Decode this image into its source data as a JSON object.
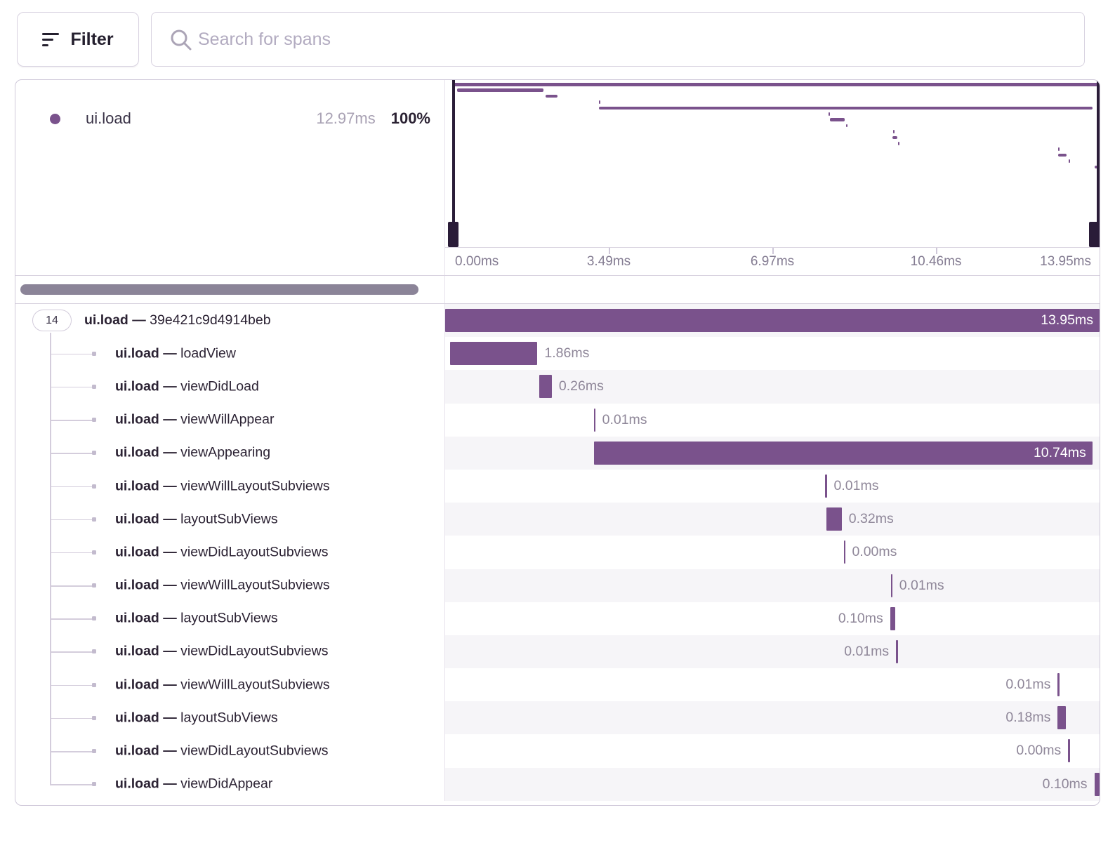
{
  "toolbar": {
    "filter_label": "Filter",
    "search_placeholder": "Search for spans"
  },
  "legend": {
    "op": "ui.load",
    "duration": "12.97ms",
    "percent": "100%"
  },
  "minimap": {
    "axis_ticks": [
      "0.00ms",
      "3.49ms",
      "6.97ms",
      "10.46ms",
      "13.95ms"
    ]
  },
  "tree": {
    "separator": "—",
    "root_child_count": "14"
  },
  "spans": [
    {
      "op": "ui.load",
      "description": "39e421c9d4914beb",
      "duration_label": "13.95ms",
      "duration_ms": 13.95,
      "left_pct": 0,
      "width_pct": 100,
      "label_side": "inside",
      "is_root": true
    },
    {
      "op": "ui.load",
      "description": "loadView",
      "duration_label": "1.86ms",
      "duration_ms": 1.86,
      "left_pct": 0.75,
      "width_pct": 13.35,
      "label_side": "right"
    },
    {
      "op": "ui.load",
      "description": "viewDidLoad",
      "duration_label": "0.26ms",
      "duration_ms": 0.26,
      "left_pct": 14.4,
      "width_pct": 1.9,
      "label_side": "right"
    },
    {
      "op": "ui.load",
      "description": "viewWillAppear",
      "duration_label": "0.01ms",
      "duration_ms": 0.01,
      "left_pct": 22.7,
      "width_pct": 0.22,
      "label_side": "right"
    },
    {
      "op": "ui.load",
      "description": "viewAppearing",
      "duration_label": "10.74ms",
      "duration_ms": 10.74,
      "left_pct": 22.7,
      "width_pct": 76.2,
      "label_side": "inside"
    },
    {
      "op": "ui.load",
      "description": "viewWillLayoutSubviews",
      "duration_label": "0.01ms",
      "duration_ms": 0.01,
      "left_pct": 58.1,
      "width_pct": 0.22,
      "label_side": "right"
    },
    {
      "op": "ui.load",
      "description": "layoutSubViews",
      "duration_label": "0.32ms",
      "duration_ms": 0.32,
      "left_pct": 58.3,
      "width_pct": 2.3,
      "label_side": "right"
    },
    {
      "op": "ui.load",
      "description": "viewDidLayoutSubviews",
      "duration_label": "0.00ms",
      "duration_ms": 0.0,
      "left_pct": 60.9,
      "width_pct": 0.2,
      "label_side": "right"
    },
    {
      "op": "ui.load",
      "description": "viewWillLayoutSubviews",
      "duration_label": "0.01ms",
      "duration_ms": 0.01,
      "left_pct": 68.1,
      "width_pct": 0.22,
      "label_side": "right"
    },
    {
      "op": "ui.load",
      "description": "layoutSubViews",
      "duration_label": "0.10ms",
      "duration_ms": 0.1,
      "left_pct": 68.0,
      "width_pct": 0.75,
      "label_side": "left"
    },
    {
      "op": "ui.load",
      "description": "viewDidLayoutSubviews",
      "duration_label": "0.01ms",
      "duration_ms": 0.01,
      "left_pct": 68.9,
      "width_pct": 0.22,
      "label_side": "left"
    },
    {
      "op": "ui.load",
      "description": "viewWillLayoutSubviews",
      "duration_label": "0.01ms",
      "duration_ms": 0.01,
      "left_pct": 93.6,
      "width_pct": 0.22,
      "label_side": "left"
    },
    {
      "op": "ui.load",
      "description": "layoutSubViews",
      "duration_label": "0.18ms",
      "duration_ms": 0.18,
      "left_pct": 93.6,
      "width_pct": 1.3,
      "label_side": "left"
    },
    {
      "op": "ui.load",
      "description": "viewDidLayoutSubviews",
      "duration_label": "0.00ms",
      "duration_ms": 0.0,
      "left_pct": 95.2,
      "width_pct": 0.2,
      "label_side": "left"
    },
    {
      "op": "ui.load",
      "description": "viewDidAppear",
      "duration_label": "0.10ms",
      "duration_ms": 0.1,
      "left_pct": 99.2,
      "width_pct": 0.8,
      "label_side": "left"
    }
  ],
  "colors": {
    "span_purple": "#7a528c",
    "handle_dark": "#2a1c38",
    "row_alt_bg": "#f6f5f8",
    "scrollbar": "#8b8498"
  }
}
